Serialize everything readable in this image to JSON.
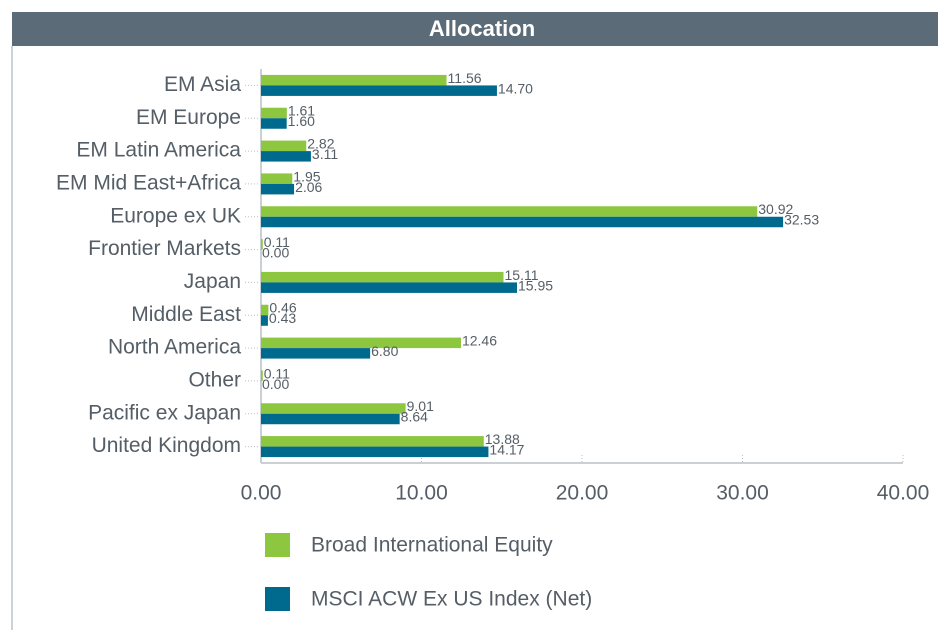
{
  "chart_data": {
    "type": "bar",
    "orientation": "horizontal",
    "title": "Allocation",
    "categories": [
      "EM Asia",
      "EM Europe",
      "EM Latin America",
      "EM Mid East+Africa",
      "Europe ex UK",
      "Frontier Markets",
      "Japan",
      "Middle East",
      "North America",
      "Other",
      "Pacific ex Japan",
      "United Kingdom"
    ],
    "series": [
      {
        "name": "Broad International Equity",
        "color": "#8dc63f",
        "values": [
          11.56,
          1.61,
          2.82,
          1.95,
          30.92,
          0.11,
          15.11,
          0.46,
          12.46,
          0.11,
          9.01,
          13.88
        ],
        "value_labels": [
          "11.56",
          "1.61",
          "2.82",
          "1.95",
          "30.92",
          "0.11",
          "15.11",
          "0.46",
          "12.46",
          "0.11",
          "9.01",
          "13.88"
        ]
      },
      {
        "name": "MSCI ACW Ex US Index (Net)",
        "color": "#006a8e",
        "values": [
          14.7,
          1.6,
          3.11,
          2.06,
          32.53,
          0,
          15.95,
          0.43,
          6.8,
          0,
          8.64,
          14.17
        ],
        "value_labels": [
          "14.70",
          "1.60",
          "3.11",
          "2.06",
          "32.53",
          "0.00",
          "15.95",
          "0.43",
          "6.80",
          "0.00",
          "8.64",
          "14.17"
        ]
      }
    ],
    "xlim": [
      0,
      40
    ],
    "xticks": [
      {
        "value": 0,
        "label": "0.00"
      },
      {
        "value": 10,
        "label": "10.00"
      },
      {
        "value": 20,
        "label": "20.00"
      },
      {
        "value": 30,
        "label": "30.00"
      },
      {
        "value": 40,
        "label": "40.00"
      }
    ],
    "legend": "bottom"
  }
}
